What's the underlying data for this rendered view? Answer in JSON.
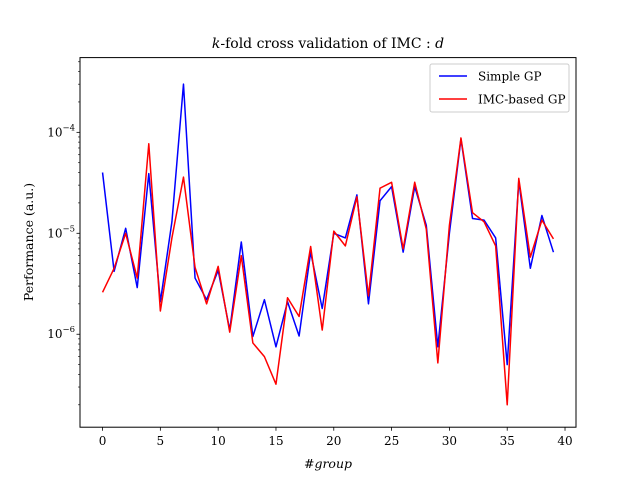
{
  "chart_data": {
    "type": "line",
    "title_prefix": "k",
    "title_main": "-fold cross validation of IMC : ",
    "title_suffix": "d",
    "xlabel": "#group",
    "ylabel": "Performance (a.u.)",
    "xscale": "linear",
    "yscale": "log",
    "xlim": [
      -1.95,
      40.95
    ],
    "ylim": [
      1.2e-07,
      0.00055
    ],
    "xticks": [
      0,
      5,
      10,
      15,
      20,
      25,
      30,
      35,
      40
    ],
    "xtick_labels": [
      "0",
      "5",
      "10",
      "15",
      "20",
      "25",
      "30",
      "35",
      "40"
    ],
    "yticks": [
      1e-06,
      1e-05,
      0.0001
    ],
    "ytick_bases": [
      "10",
      "10",
      "10"
    ],
    "ytick_exps": [
      "−6",
      "−5",
      "−4"
    ],
    "grid": false,
    "legend_position": "top-right",
    "x": [
      0,
      1,
      2,
      3,
      4,
      5,
      6,
      7,
      8,
      9,
      10,
      11,
      12,
      13,
      14,
      15,
      16,
      17,
      18,
      19,
      20,
      21,
      22,
      23,
      24,
      25,
      26,
      27,
      28,
      29,
      30,
      31,
      32,
      33,
      34,
      35,
      36,
      37,
      38,
      39
    ],
    "series": [
      {
        "name": "Simple GP",
        "color": "#0000ff",
        "values": [
          4e-05,
          4.2e-06,
          1.12e-05,
          2.9e-06,
          3.9e-05,
          2.1e-06,
          1.3e-05,
          0.0003,
          3.6e-06,
          2.2e-06,
          4.3e-06,
          1.1e-06,
          8.2e-06,
          9.5e-07,
          2.2e-06,
          7.5e-07,
          2.1e-06,
          9.6e-07,
          6.5e-06,
          1.8e-06,
          1e-05,
          9e-06,
          2.4e-05,
          2e-06,
          2.1e-05,
          2.9e-05,
          6.5e-06,
          2.9e-05,
          1.2e-05,
          7.5e-07,
          1e-05,
          8.6e-05,
          1.4e-05,
          1.35e-05,
          9e-06,
          5e-07,
          3.3e-05,
          4.5e-06,
          1.5e-05,
          6.5e-06
        ]
      },
      {
        "name": "IMC-based GP",
        "color": "#ff0000",
        "values": [
          2.6e-06,
          4.5e-06,
          1e-05,
          3.6e-06,
          7.7e-05,
          1.7e-06,
          9e-06,
          3.6e-05,
          4.6e-06,
          2e-06,
          4.7e-06,
          1.05e-06,
          6e-06,
          8.2e-07,
          6e-07,
          3.2e-07,
          2.3e-06,
          1.5e-06,
          7.4e-06,
          1.1e-06,
          1.05e-05,
          7.5e-06,
          2.3e-05,
          2.4e-06,
          2.8e-05,
          3.2e-05,
          7e-06,
          3.2e-05,
          1.1e-05,
          5.2e-07,
          1.2e-05,
          8.8e-05,
          1.6e-05,
          1.3e-05,
          7.5e-06,
          2e-07,
          3.5e-05,
          5.8e-06,
          1.35e-05,
          8.8e-06
        ]
      }
    ]
  }
}
